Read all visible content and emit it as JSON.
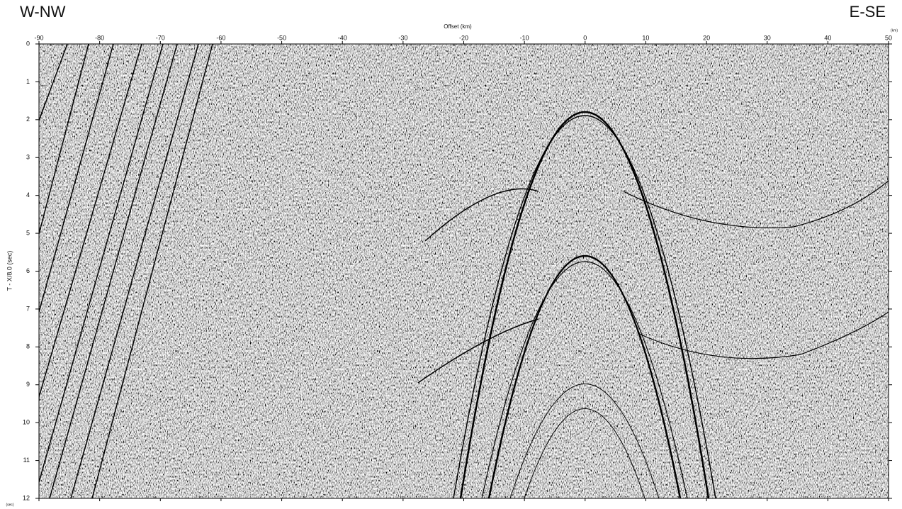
{
  "chart_data": {
    "type": "seismic-section",
    "title_left": "W-NW",
    "title_right": "E-SE",
    "x_label": "Offset (km)",
    "x_unit": "(km)",
    "y_label": "T - X/8.0 (sec)",
    "y_unit": "(sec)",
    "xlim": [
      -90,
      50
    ],
    "xticks": [
      -90,
      -80,
      -70,
      -60,
      -50,
      -40,
      -30,
      -20,
      -10,
      0,
      10,
      20,
      30,
      40,
      50
    ],
    "ylim": [
      0,
      12
    ],
    "yticks": [
      0,
      1,
      2,
      3,
      4,
      5,
      6,
      7,
      8,
      9,
      10,
      11,
      12
    ],
    "y_inverted": true
  }
}
